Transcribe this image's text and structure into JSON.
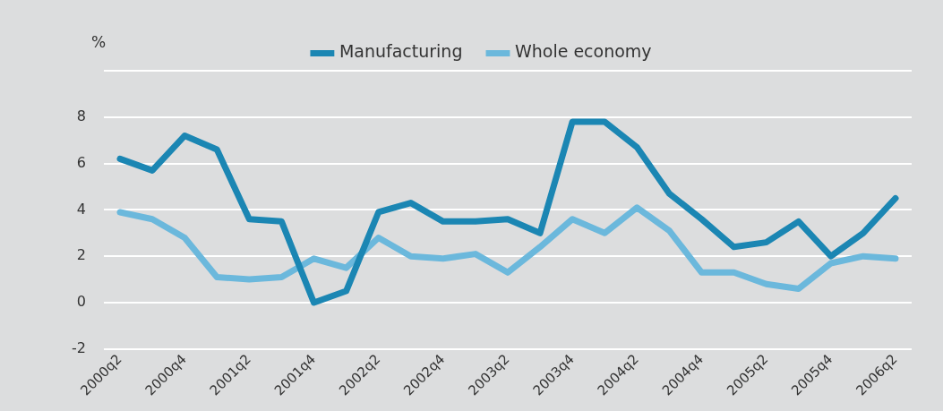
{
  "chart_data": {
    "type": "line",
    "ylabel": "%",
    "categories": [
      "2000q2",
      null,
      "2000q4",
      null,
      "2001q2",
      null,
      "2001q4",
      null,
      "2002q2",
      null,
      "2002q4",
      null,
      "2003q2",
      null,
      "2003q4",
      null,
      "2004q2",
      null,
      "2004q4",
      null,
      "2005q2",
      null,
      "2005q4",
      null,
      "2006q2"
    ],
    "series": [
      {
        "name": "Manufacturing",
        "color": "#1b86b3",
        "values": [
          6.2,
          5.7,
          7.2,
          6.6,
          3.6,
          3.5,
          0,
          0.5,
          3.9,
          4.3,
          3.5,
          3.5,
          3.6,
          3.0,
          7.8,
          7.8,
          6.7,
          4.7,
          3.6,
          2.4,
          2.6,
          3.5,
          2.0,
          3.0,
          4.5
        ]
      },
      {
        "name": "Whole economy",
        "color": "#6bb8dc",
        "values": [
          3.9,
          3.6,
          2.8,
          1.1,
          1.0,
          1.1,
          1.9,
          1.5,
          2.8,
          2.0,
          1.9,
          2.1,
          1.3,
          2.4,
          3.6,
          3.0,
          4.1,
          3.1,
          1.3,
          1.3,
          0.8,
          0.6,
          1.7,
          2.0,
          1.9
        ]
      }
    ],
    "ylim": [
      -2,
      10
    ],
    "yticks": [
      -2,
      0,
      2,
      4,
      6,
      8,
      {
        "value": 10,
        "label": null
      }
    ],
    "grid": "y",
    "legend": "top",
    "marker": "none",
    "line_style": "solid"
  }
}
